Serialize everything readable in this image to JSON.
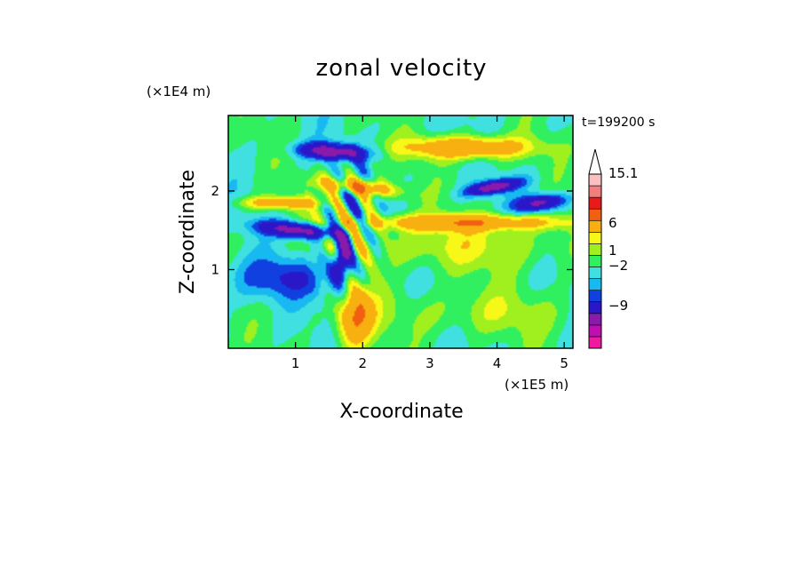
{
  "chart_data": {
    "type": "heatmap",
    "title": "zonal velocity",
    "xlabel": "X-coordinate",
    "ylabel": "Z-coordinate",
    "x_unit": "(×1E5 m)",
    "y_unit": "(×1E4 m)",
    "time_label": "t=199200 s",
    "x_ticks": [
      1,
      2,
      3,
      4,
      5
    ],
    "y_ticks": [
      1,
      2
    ],
    "xlim": [
      0,
      5.13
    ],
    "ylim": [
      0,
      2.96
    ],
    "grid": false,
    "colorbar": {
      "labels": [
        "15.1",
        "6",
        "1",
        "−2",
        "−9"
      ],
      "levels": [
        -15,
        -12,
        -9,
        -6,
        -3,
        -2,
        -1,
        0,
        1,
        2,
        3,
        6,
        9,
        12,
        15.1
      ],
      "colors": [
        "#f01aa0",
        "#c00fb0",
        "#8a1aaa",
        "#2a18c8",
        "#1040e0",
        "#18b8f0",
        "#40e0e0",
        "#30f060",
        "#a0f020",
        "#f8f818",
        "#f8b010",
        "#f06010",
        "#e81a1a",
        "#f08080",
        "#f8c0c0"
      ],
      "extend": "max"
    },
    "features": [
      {
        "x": 1.55,
        "z": 2.5,
        "rx": 0.48,
        "rz": 0.1,
        "u": -8,
        "tilt": -0.05
      },
      {
        "x": 1.05,
        "z": 1.5,
        "rx": 0.58,
        "rz": 0.1,
        "u": -8,
        "tilt": -0.08
      },
      {
        "x": 1.7,
        "z": 1.15,
        "rx": 0.15,
        "rz": 0.3,
        "u": -8,
        "tilt": 0.6
      },
      {
        "x": 3.95,
        "z": 2.05,
        "rx": 0.38,
        "rz": 0.08,
        "u": -8,
        "tilt": 0.15
      },
      {
        "x": 4.65,
        "z": 1.85,
        "rx": 0.35,
        "rz": 0.1,
        "u": -7,
        "tilt": 0.1
      },
      {
        "x": 3.55,
        "z": 2.55,
        "rx": 0.9,
        "rz": 0.14,
        "u": 6,
        "tilt": 0
      },
      {
        "x": 1.95,
        "z": 2.05,
        "rx": 0.55,
        "rz": 0.1,
        "u": 6,
        "tilt": -0.1
      },
      {
        "x": 0.75,
        "z": 1.85,
        "rx": 0.55,
        "rz": 0.08,
        "u": 5,
        "tilt": 0
      },
      {
        "x": 1.9,
        "z": 0.4,
        "rx": 0.25,
        "rz": 0.38,
        "u": 6,
        "tilt": 0.3
      },
      {
        "x": 3.3,
        "z": 1.3,
        "rx": 2.0,
        "rz": 0.32,
        "u": 2,
        "tilt": 0
      },
      {
        "x": 3.7,
        "z": 0.45,
        "rx": 1.7,
        "rz": 0.3,
        "u": 1.5,
        "tilt": 0
      },
      {
        "x": 0.8,
        "z": 0.9,
        "rx": 0.8,
        "rz": 0.28,
        "u": -3,
        "tilt": 0
      },
      {
        "x": 3.5,
        "z": 1.6,
        "rx": 1.6,
        "rz": 0.1,
        "u": 5,
        "tilt": 0
      }
    ]
  }
}
